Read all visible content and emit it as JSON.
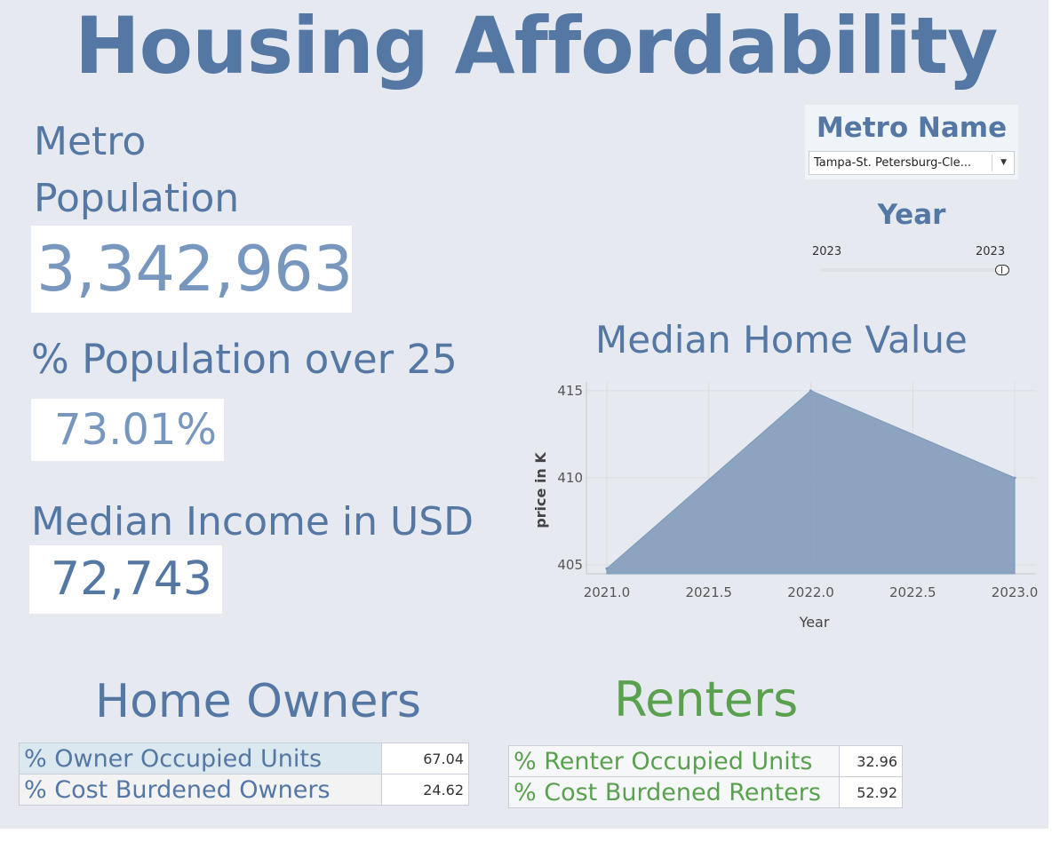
{
  "title": "Housing Affordability",
  "kpis": {
    "population_label_1": "Metro",
    "population_label_2": "Population",
    "population_value": "3,342,963",
    "over25_label": "% Population over 25",
    "over25_value": "73.01%",
    "income_label": "Median Income in USD",
    "income_value": "72,743"
  },
  "filters": {
    "metro_title": "Metro Name",
    "metro_selected": "Tampa-St. Petersburg-Cle...",
    "year_title": "Year",
    "year_min_label": "2023",
    "year_max_label": "2023",
    "year_value": 2023
  },
  "chart_data": {
    "type": "area",
    "title": "Median Home Value",
    "xlabel": "Year",
    "ylabel": "price in K",
    "x": [
      2021.0,
      2022.0,
      2023.0
    ],
    "y": [
      404.8,
      415.0,
      410.0
    ],
    "xlim": [
      2020.9,
      2023.1
    ],
    "ylim": [
      404.5,
      415.5
    ],
    "x_ticks": [
      2021.0,
      2021.5,
      2022.0,
      2022.5,
      2023.0
    ],
    "x_tick_labels": [
      "2021.0",
      "2021.5",
      "2022.0",
      "2022.5",
      "2023.0"
    ],
    "y_ticks": [
      405,
      410,
      415
    ],
    "y_tick_labels": [
      "405",
      "410",
      "415"
    ],
    "grid": true,
    "color": "#7c98b9"
  },
  "owners": {
    "title": "Home Owners",
    "rows": [
      {
        "label": "% Owner Occupied Units",
        "value": "67.04"
      },
      {
        "label": "% Cost Burdened Owners",
        "value": "24.62"
      }
    ]
  },
  "renters": {
    "title": "Renters",
    "rows": [
      {
        "label": "% Renter Occupied Units",
        "value": "32.96"
      },
      {
        "label": "% Cost Burdened Renters",
        "value": "52.92"
      }
    ]
  },
  "colors": {
    "primary": "#5477a4",
    "kpi_value": "#7897bf",
    "renters": "#59a14f",
    "background": "#e6eaf0"
  }
}
